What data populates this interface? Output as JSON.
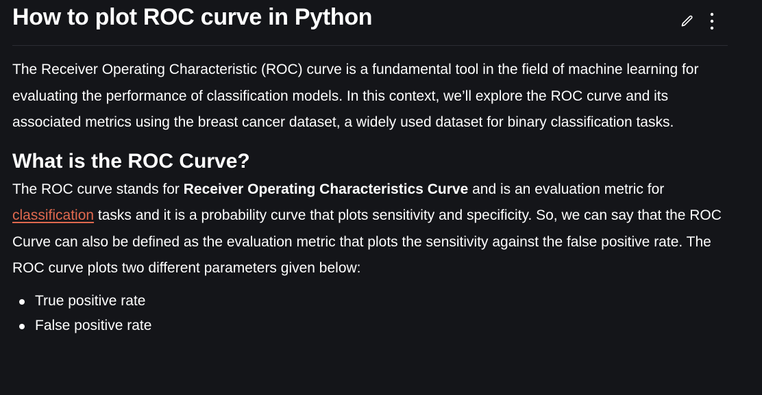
{
  "article": {
    "title": "How to plot ROC curve in Python",
    "actions": {
      "edit_icon": "pencil-icon",
      "more_icon": "more-vertical-icon"
    },
    "intro": "The Receiver Operating Characteristic (ROC) curve is a fundamental tool in the field of machine learning for evaluating the performance of classification models. In this context, we’ll explore the ROC curve and its associated metrics using the breast cancer dataset, a widely used dataset for binary classification tasks.",
    "section": {
      "heading": "What is the ROC Curve?",
      "para_start": "The ROC curve stands for ",
      "para_bold": "Receiver Operating Characteristics Curve",
      "para_mid": " and is an evaluation metric for ",
      "link_text": "classification",
      "para_end": " tasks and it is a probability curve that plots sensitivity and specificity. So, we can say that the ROC Curve can also be defined as the evaluation metric that plots the sensitivity against the false positive rate. The ROC curve plots two different parameters given below:",
      "bullets": [
        "True positive rate",
        "False positive rate"
      ]
    }
  },
  "colors": {
    "background": "#141519",
    "text": "#ffffff",
    "link": "#e0694f",
    "divider": "#2b2d33"
  }
}
